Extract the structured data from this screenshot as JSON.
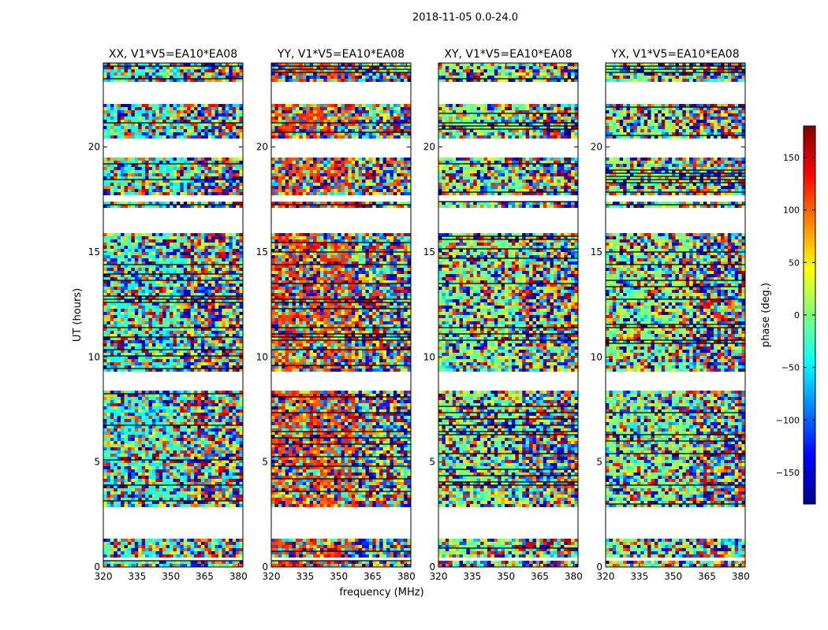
{
  "chart_data": {
    "type": "heatmap",
    "suptitle": "2018-11-05 0.0-24.0",
    "xlabel": "frequency (MHz)",
    "ylabel": "UT (hours)",
    "xlim": [
      320,
      382
    ],
    "ylim": [
      0,
      24
    ],
    "x_ticks": [
      "320",
      "335",
      "350",
      "365",
      "380"
    ],
    "y_ticks": [
      "0",
      "5",
      "10",
      "15",
      "20"
    ],
    "panels": [
      {
        "title": "XX, V1*V5=EA10*EA08",
        "mean_phase_deg": -30
      },
      {
        "title": "YY, V1*V5=EA10*EA08",
        "mean_phase_deg": 110
      },
      {
        "title": "XY, V1*V5=EA10*EA08",
        "mean_phase_deg": 0
      },
      {
        "title": "YX, V1*V5=EA10*EA08",
        "mean_phase_deg": 0
      }
    ],
    "flagged_ut_ranges_hours": [
      [
        0.45,
        0.5
      ],
      [
        1.45,
        2.0
      ],
      [
        2.05,
        2.95
      ],
      [
        8.45,
        9.35
      ],
      [
        15.95,
        17.15
      ],
      [
        17.55,
        17.75
      ],
      [
        19.55,
        20.55
      ],
      [
        22.15,
        23.25
      ]
    ],
    "colorbar": {
      "label": "phase (deg.)",
      "range": [
        -180,
        180
      ],
      "ticks": [
        "150",
        "100",
        "50",
        "0",
        "−50",
        "−100",
        "−150"
      ],
      "colormap": "jet"
    }
  }
}
